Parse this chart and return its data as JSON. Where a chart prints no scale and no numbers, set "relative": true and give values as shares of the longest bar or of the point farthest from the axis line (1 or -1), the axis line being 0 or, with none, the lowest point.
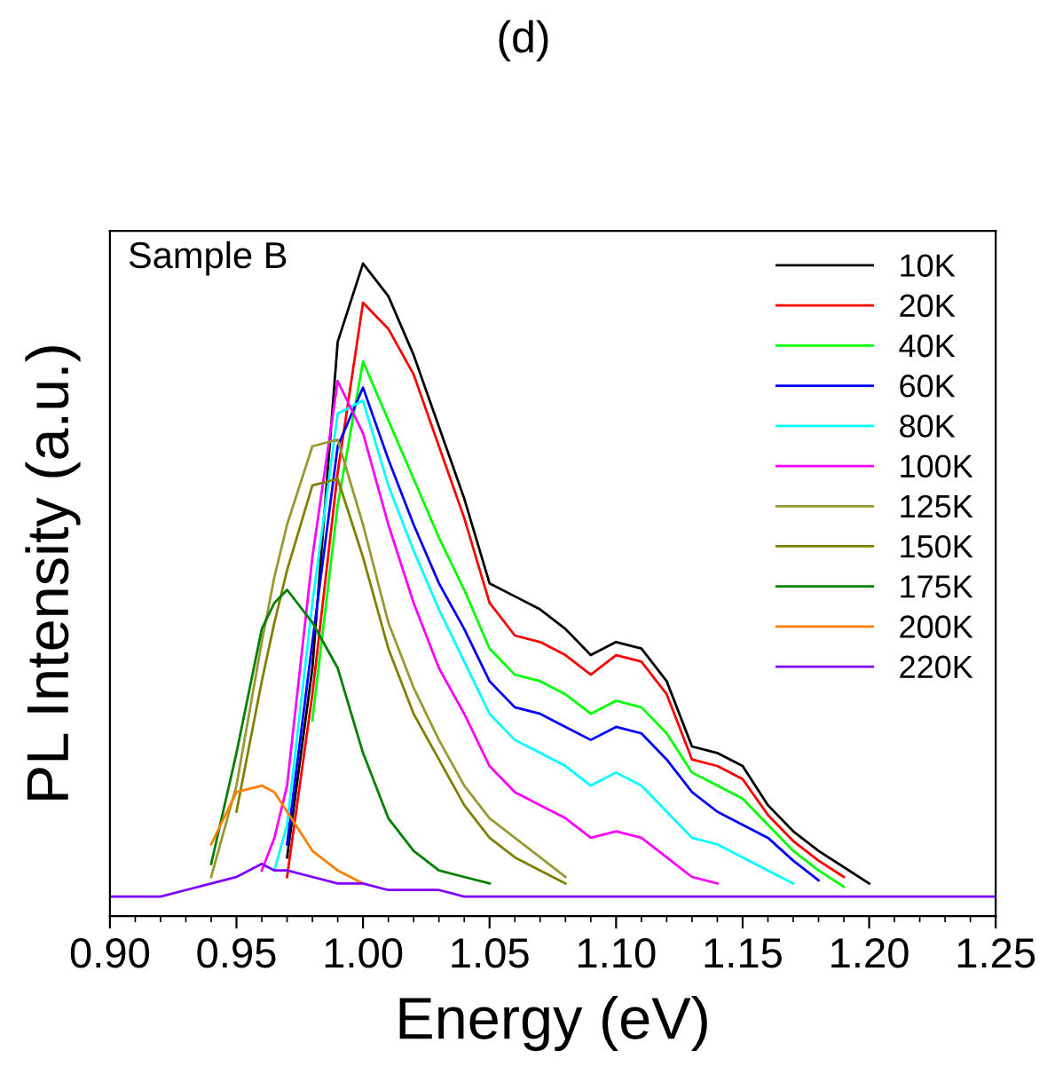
{
  "chart_data": {
    "type": "line",
    "title": "(d)",
    "xlabel": "Energy (eV)",
    "ylabel": "PL Intensity (a.u.)",
    "annotations": [
      "Sample B"
    ],
    "relative": true,
    "legend": "top right",
    "grid": false,
    "tick_labels": "x",
    "marker": "none",
    "line_style": "solid",
    "xlim": [
      0.9,
      1.25
    ],
    "xticks": [
      {
        "value": 0.9,
        "label": "0.90"
      },
      0.95,
      {
        "value": 1.0,
        "label": "1.00"
      },
      1.05,
      {
        "value": 1.1,
        "label": "1.10"
      },
      1.15,
      {
        "value": 1.2,
        "label": "1.20"
      },
      1.25
    ],
    "x": [
      0.9,
      0.92,
      0.93,
      0.94,
      0.95,
      0.96,
      0.965,
      0.97,
      0.98,
      0.99,
      1.0,
      1.01,
      1.02,
      1.03,
      1.04,
      1.05,
      1.06,
      1.07,
      1.08,
      1.09,
      1.1,
      1.11,
      1.12,
      1.13,
      1.14,
      1.15,
      1.16,
      1.17,
      1.18,
      1.19,
      1.2,
      1.22,
      1.25
    ],
    "series": [
      {
        "name": "10K",
        "color": "#000000",
        "values": [
          null,
          null,
          null,
          null,
          null,
          null,
          null,
          0.09,
          0.38,
          0.88,
          1.0,
          0.95,
          0.86,
          0.75,
          0.64,
          0.51,
          0.49,
          0.47,
          0.44,
          0.4,
          0.42,
          0.41,
          0.36,
          0.26,
          0.25,
          0.23,
          0.17,
          0.13,
          0.1,
          0.075,
          0.05,
          null,
          null
        ]
      },
      {
        "name": "20K",
        "color": "#ff0000",
        "values": [
          null,
          null,
          null,
          null,
          null,
          null,
          null,
          0.06,
          0.34,
          0.68,
          0.94,
          0.9,
          0.83,
          0.72,
          0.61,
          0.48,
          0.43,
          0.42,
          0.4,
          0.37,
          0.4,
          0.39,
          0.34,
          0.24,
          0.23,
          0.21,
          0.155,
          0.115,
          0.085,
          0.06,
          null,
          null,
          null
        ]
      },
      {
        "name": "40K",
        "color": "#00ff00",
        "values": [
          null,
          null,
          null,
          null,
          null,
          null,
          null,
          null,
          0.3,
          0.63,
          0.85,
          0.76,
          0.67,
          0.58,
          0.5,
          0.41,
          0.37,
          0.36,
          0.34,
          0.31,
          0.33,
          0.32,
          0.28,
          0.22,
          0.2,
          0.18,
          0.14,
          0.1,
          0.07,
          0.045,
          null,
          null,
          null
        ]
      },
      {
        "name": "60K",
        "color": "#0000ff",
        "values": [
          null,
          null,
          null,
          null,
          null,
          null,
          null,
          0.11,
          0.42,
          0.72,
          0.81,
          0.7,
          0.6,
          0.51,
          0.44,
          0.36,
          0.32,
          0.31,
          0.29,
          0.27,
          0.29,
          0.28,
          0.24,
          0.19,
          0.16,
          0.14,
          0.12,
          0.085,
          0.055,
          null,
          null,
          null,
          null
        ]
      },
      {
        "name": "80K",
        "color": "#00ffff",
        "values": [
          null,
          null,
          null,
          null,
          null,
          null,
          0.07,
          0.14,
          0.48,
          0.77,
          0.79,
          0.66,
          0.56,
          0.47,
          0.39,
          0.31,
          0.27,
          0.25,
          0.23,
          0.2,
          0.22,
          0.2,
          0.16,
          0.12,
          0.11,
          0.09,
          0.07,
          0.05,
          null,
          null,
          null,
          null,
          null
        ]
      },
      {
        "name": "100K",
        "color": "#ff00ff",
        "values": [
          null,
          null,
          null,
          null,
          null,
          0.07,
          0.12,
          0.2,
          0.55,
          0.82,
          0.74,
          0.6,
          0.48,
          0.38,
          0.31,
          0.23,
          0.19,
          0.17,
          0.15,
          0.12,
          0.13,
          0.12,
          0.09,
          0.06,
          0.05,
          null,
          null,
          null,
          null,
          null,
          null,
          null,
          null
        ]
      },
      {
        "name": "125K",
        "color": "#999933",
        "values": [
          null,
          null,
          null,
          0.06,
          0.2,
          0.42,
          0.52,
          0.6,
          0.72,
          0.73,
          0.6,
          0.45,
          0.35,
          0.27,
          0.2,
          0.15,
          0.12,
          0.09,
          0.06,
          null,
          null,
          null,
          null,
          null,
          null,
          null,
          null,
          null,
          null,
          null,
          null,
          null,
          null
        ]
      },
      {
        "name": "150K",
        "color": "#808000",
        "values": [
          null,
          null,
          null,
          null,
          0.16,
          0.36,
          0.45,
          0.53,
          0.66,
          0.67,
          0.55,
          0.41,
          0.31,
          0.24,
          0.17,
          0.12,
          0.09,
          0.07,
          0.05,
          null,
          null,
          null,
          null,
          null,
          null,
          null,
          null,
          null,
          null,
          null,
          null,
          null,
          null
        ]
      },
      {
        "name": "175K",
        "color": "#008000",
        "values": [
          null,
          null,
          null,
          0.08,
          0.25,
          0.44,
          0.48,
          0.5,
          0.45,
          0.38,
          0.25,
          0.15,
          0.1,
          0.07,
          0.06,
          0.05,
          null,
          null,
          null,
          null,
          null,
          null,
          null,
          null,
          null,
          null,
          null,
          null,
          null,
          null,
          null,
          null,
          null
        ]
      },
      {
        "name": "200K",
        "color": "#ff8000",
        "values": [
          null,
          null,
          null,
          0.11,
          0.19,
          0.2,
          0.19,
          0.16,
          0.1,
          0.07,
          0.05,
          null,
          null,
          null,
          null,
          null,
          null,
          null,
          null,
          null,
          null,
          null,
          null,
          null,
          null,
          null,
          null,
          null,
          null,
          null,
          null,
          null,
          null
        ]
      },
      {
        "name": "220K",
        "color": "#8000ff",
        "values": [
          0.03,
          0.03,
          0.04,
          0.05,
          0.06,
          0.08,
          0.07,
          0.07,
          0.06,
          0.05,
          0.05,
          0.04,
          0.04,
          0.04,
          0.03,
          0.03,
          0.03,
          0.03,
          0.03,
          0.03,
          0.03,
          0.03,
          0.03,
          0.03,
          0.03,
          0.03,
          0.03,
          0.03,
          0.03,
          0.03,
          0.03,
          0.03,
          0.03
        ]
      }
    ]
  }
}
